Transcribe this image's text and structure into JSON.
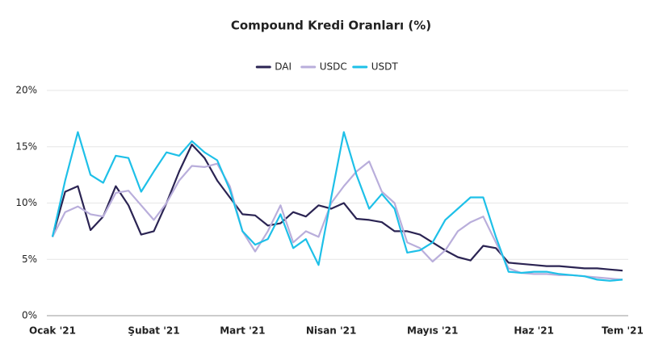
{
  "chart_data": {
    "type": "line",
    "title": "Compound Kredi Oranları (%)",
    "categories": [
      "Ocak '21",
      null,
      null,
      null,
      null,
      null,
      null,
      null,
      "Şubat '21",
      null,
      null,
      null,
      null,
      null,
      null,
      "Mart '21",
      null,
      null,
      null,
      null,
      null,
      null,
      "Nisan '21",
      null,
      null,
      null,
      null,
      null,
      null,
      null,
      "Mayıs '21",
      null,
      null,
      null,
      null,
      null,
      null,
      null,
      "Haz '21",
      null,
      null,
      null,
      null,
      null,
      null,
      "Tem '21"
    ],
    "series": [
      {
        "name": "DAI",
        "color": "#2b2453",
        "values": [
          7.0,
          11.0,
          11.5,
          7.6,
          8.8,
          11.5,
          9.8,
          7.2,
          7.5,
          10.0,
          12.8,
          15.2,
          14.0,
          12.0,
          10.5,
          9.0,
          8.9,
          8.0,
          8.2,
          9.2,
          8.8,
          9.8,
          9.5,
          10.0,
          8.6,
          8.5,
          8.3,
          7.5,
          7.5,
          7.2,
          6.5,
          5.8,
          5.2,
          4.9,
          6.2,
          6.0,
          4.7,
          4.6,
          4.5,
          4.4,
          4.4,
          4.3,
          4.2,
          4.2,
          4.1,
          4.0
        ]
      },
      {
        "name": "USDC",
        "color": "#b9aedb",
        "values": [
          7.0,
          9.2,
          9.7,
          9.0,
          8.8,
          10.9,
          11.1,
          9.8,
          8.5,
          10.0,
          12.0,
          13.3,
          13.2,
          13.5,
          11.5,
          7.5,
          5.7,
          7.5,
          9.8,
          6.5,
          7.5,
          7.0,
          10.0,
          11.5,
          12.8,
          13.7,
          11.0,
          10.0,
          6.5,
          6.0,
          4.8,
          5.8,
          7.5,
          8.3,
          8.8,
          6.5,
          4.2,
          3.8,
          3.7,
          3.7,
          3.6,
          3.6,
          3.5,
          3.4,
          3.3,
          3.2
        ]
      },
      {
        "name": "USDT",
        "color": "#1ec0e8",
        "values": [
          7.0,
          12.0,
          16.3,
          12.5,
          11.8,
          14.2,
          14.0,
          11.0,
          12.8,
          14.5,
          14.2,
          15.5,
          14.5,
          13.8,
          11.2,
          7.5,
          6.3,
          6.8,
          9.0,
          6.0,
          6.8,
          4.5,
          10.5,
          16.3,
          12.5,
          9.5,
          10.8,
          9.5,
          5.6,
          5.8,
          6.5,
          8.5,
          9.5,
          10.5,
          10.5,
          7.0,
          3.9,
          3.8,
          3.9,
          3.9,
          3.7,
          3.6,
          3.5,
          3.2,
          3.1,
          3.2
        ]
      }
    ],
    "ylim": [
      0,
      20
    ],
    "yticks": [
      {
        "value": 0,
        "label": "0%"
      },
      {
        "value": 5,
        "label": "5%"
      },
      {
        "value": 10,
        "label": "10%"
      },
      {
        "value": 15,
        "label": "15%"
      },
      {
        "value": 20,
        "label": "20%"
      }
    ],
    "grid": true,
    "legend": "top"
  }
}
